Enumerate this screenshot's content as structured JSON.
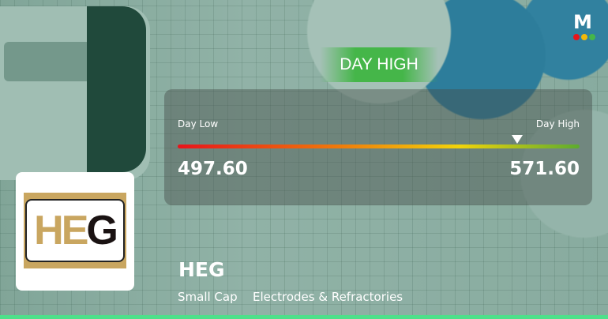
{
  "brand": {
    "logo_letter": "M",
    "dot_colors": [
      "#e8141b",
      "#f2b90a",
      "#45b649"
    ]
  },
  "badge": {
    "label": "DAY HIGH",
    "color": "#45b649"
  },
  "range": {
    "low_label": "Day Low",
    "high_label": "Day High",
    "low_value": "497.60",
    "high_value": "571.60",
    "current_position_fraction": 0.845
  },
  "company": {
    "logo_text": "HEG",
    "name": "HEG",
    "cap": "Small Cap",
    "sector": "Electrodes & Refractories"
  }
}
